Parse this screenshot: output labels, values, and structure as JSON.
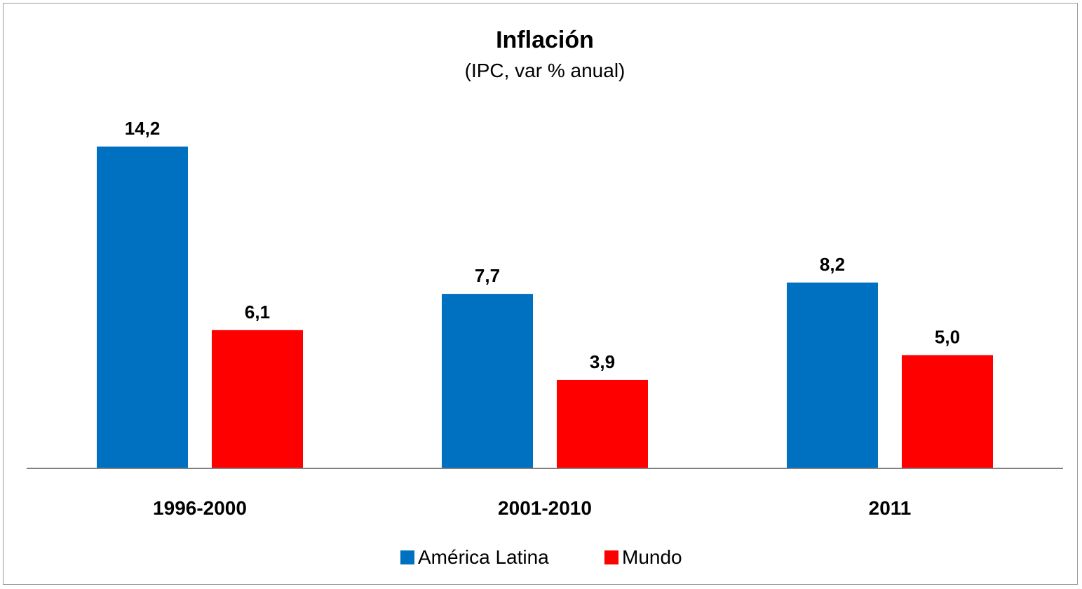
{
  "chart_data": {
    "type": "bar",
    "title": "Inflación",
    "subtitle": "(IPC, var % anual)",
    "categories": [
      "1996-2000",
      "2001-2010",
      "2011"
    ],
    "series": [
      {
        "name": "América Latina",
        "values": [
          14.2,
          7.7,
          8.2
        ],
        "labels": [
          "14,2",
          "7,7",
          "8,2"
        ],
        "color": "#0070C0"
      },
      {
        "name": "Mundo",
        "values": [
          6.1,
          3.9,
          5.0
        ],
        "labels": [
          "6,1",
          "3,9",
          "5,0"
        ],
        "color": "#FF0000"
      }
    ],
    "ylim": [
      0,
      16
    ],
    "grid": false,
    "legend_position": "bottom",
    "axis_color": "#808080"
  }
}
